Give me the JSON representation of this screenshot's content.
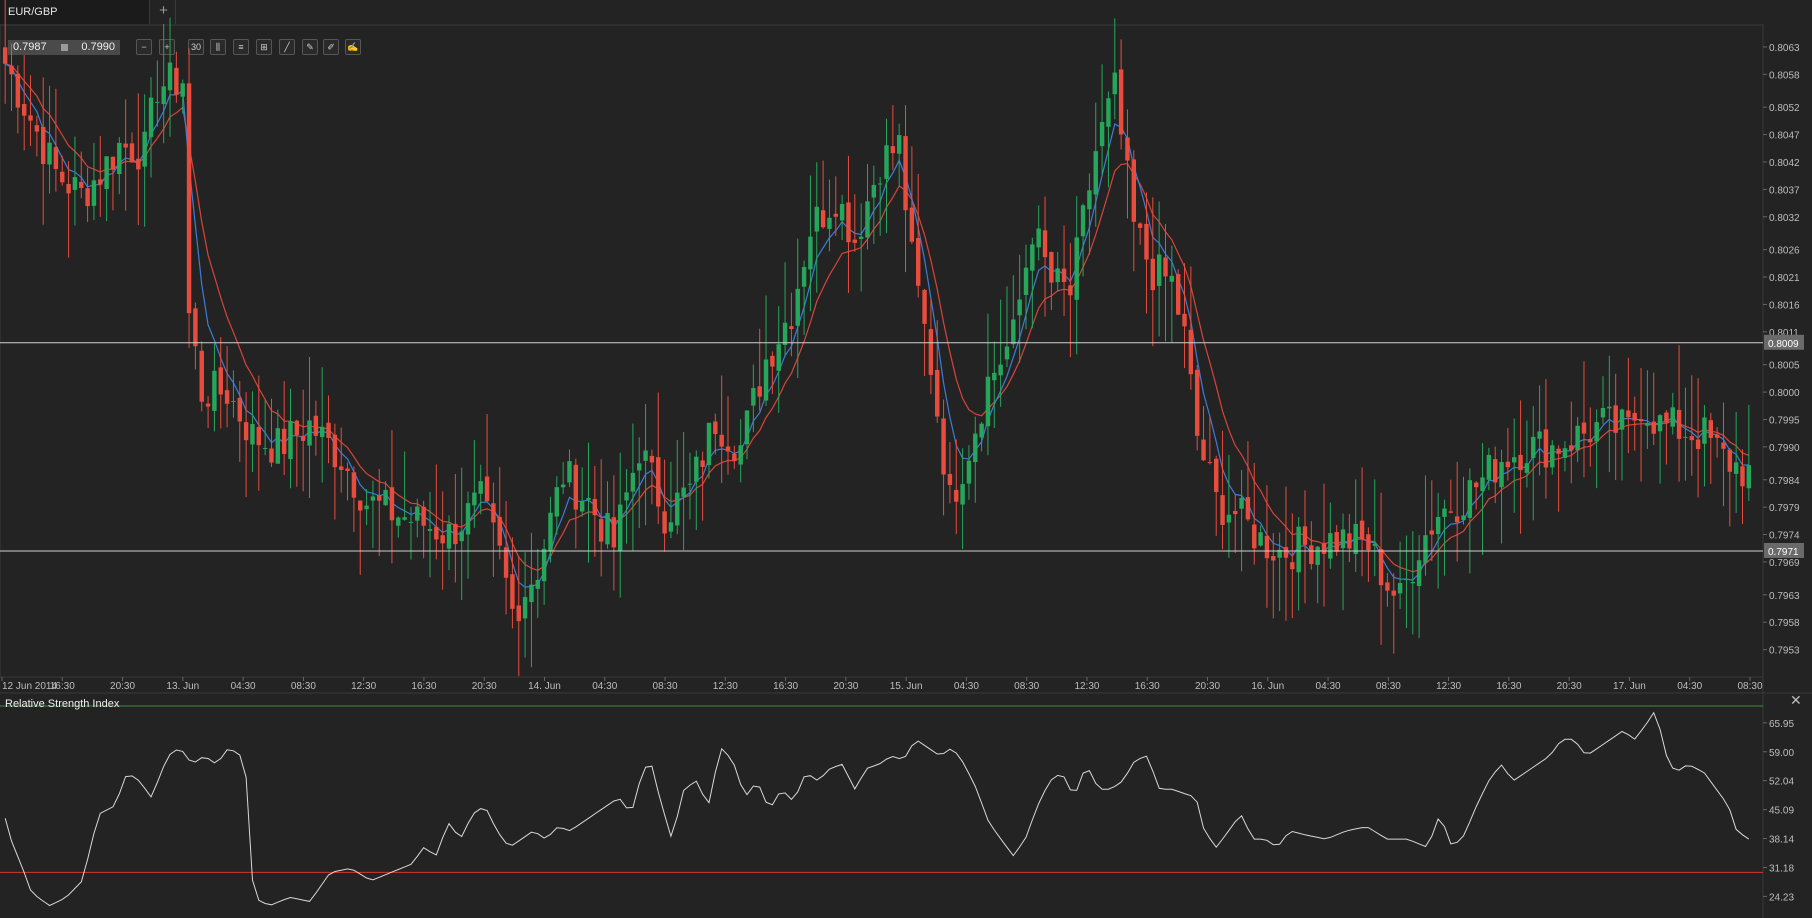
{
  "tabs": [
    {
      "label": "EUR/GBP"
    }
  ],
  "toolbar": {
    "bid": "0.7987",
    "ask": "0.7990",
    "tools": [
      {
        "name": "zoom-out-icon",
        "glyph": "−"
      },
      {
        "name": "zoom-in-icon",
        "glyph": "+"
      },
      {
        "name": "timeframe-button",
        "glyph": "30"
      },
      {
        "name": "candlestick-icon",
        "glyph": "⫼"
      },
      {
        "name": "indicators-icon",
        "glyph": "≡"
      },
      {
        "name": "crosshair-icon",
        "glyph": "⊞"
      },
      {
        "name": "trend-line-icon",
        "glyph": "╱"
      },
      {
        "name": "draw-pencil-icon",
        "glyph": "✎"
      },
      {
        "name": "edit-icon",
        "glyph": "✐"
      },
      {
        "name": "brush-icon",
        "glyph": "✍"
      }
    ]
  },
  "colors": {
    "background": "#232323",
    "bull": "#26a65b",
    "bear": "#e84c3d",
    "ma_fast": "#3b7dd8",
    "ma_slow": "#d6453b",
    "rsi_line": "#d8d8d8",
    "rsi_upper": "#3f8f3f",
    "rsi_lower": "#d03a2f"
  },
  "indicator": {
    "title": "Relative Strength Index"
  },
  "chart_data": [
    {
      "type": "candlestick",
      "symbol": "EUR/GBP",
      "ylim": [
        0.7948,
        0.8067
      ],
      "y_ticks": [
        "0.8063",
        "0.8058",
        "0.8052",
        "0.8047",
        "0.8042",
        "0.8037",
        "0.8032",
        "0.8026",
        "0.8021",
        "0.8016",
        "0.8011",
        "0.8005",
        "0.8000",
        "0.7995",
        "0.7990",
        "0.7984",
        "0.7979",
        "0.7974",
        "0.7969",
        "0.7963",
        "0.7958",
        "0.7953"
      ],
      "x_ticks": [
        "12 Jun 2014",
        "16:30",
        "20:30",
        "13. Jun",
        "04:30",
        "08:30",
        "12:30",
        "16:30",
        "20:30",
        "14. Jun",
        "04:30",
        "08:30",
        "12:30",
        "16:30",
        "20:30",
        "15. Jun",
        "04:30",
        "08:30",
        "12:30",
        "16:30",
        "20:30",
        "16. Jun",
        "04:30",
        "08:30",
        "12:30",
        "16:30",
        "20:30",
        "17. Jun",
        "04:30",
        "08:30"
      ],
      "horizontal_lines": [
        {
          "value": 0.8009,
          "label": "0.8009"
        },
        {
          "value": 0.7971,
          "label": "0.7971"
        }
      ],
      "close_path": [
        [
          0,
          0.806
        ],
        [
          8,
          0.805
        ],
        [
          16,
          0.804
        ],
        [
          24,
          0.8036
        ],
        [
          30,
          0.804
        ],
        [
          36,
          0.8045
        ],
        [
          44,
          0.8044
        ],
        [
          48,
          0.8056
        ],
        [
          56,
          0.8057
        ],
        [
          58,
          0.8014
        ],
        [
          62,
          0.8
        ],
        [
          70,
          0.8
        ],
        [
          78,
          0.7992
        ],
        [
          86,
          0.799
        ],
        [
          96,
          0.7994
        ],
        [
          106,
          0.7988
        ],
        [
          114,
          0.798
        ],
        [
          122,
          0.7978
        ],
        [
          132,
          0.7976
        ],
        [
          140,
          0.7974
        ],
        [
          150,
          0.798
        ],
        [
          156,
          0.797
        ],
        [
          160,
          0.796
        ],
        [
          168,
          0.7968
        ],
        [
          176,
          0.7985
        ],
        [
          184,
          0.798
        ],
        [
          192,
          0.7972
        ],
        [
          200,
          0.799
        ],
        [
          208,
          0.7978
        ],
        [
          216,
          0.7982
        ],
        [
          224,
          0.7995
        ],
        [
          232,
          0.799
        ],
        [
          240,
          0.8006
        ],
        [
          248,
          0.8015
        ],
        [
          254,
          0.803
        ],
        [
          262,
          0.8036
        ],
        [
          268,
          0.8028
        ],
        [
          276,
          0.8042
        ],
        [
          282,
          0.8045
        ],
        [
          286,
          0.8024
        ],
        [
          292,
          0.8005
        ],
        [
          298,
          0.798
        ],
        [
          304,
          0.799
        ],
        [
          310,
          0.8002
        ],
        [
          318,
          0.801
        ],
        [
          324,
          0.803
        ],
        [
          330,
          0.802
        ],
        [
          336,
          0.8018
        ],
        [
          344,
          0.8044
        ],
        [
          350,
          0.8055
        ],
        [
          356,
          0.803
        ],
        [
          362,
          0.8022
        ],
        [
          368,
          0.802
        ],
        [
          372,
          0.801
        ],
        [
          376,
          0.7992
        ],
        [
          382,
          0.798
        ],
        [
          388,
          0.7978
        ],
        [
          396,
          0.7973
        ],
        [
          402,
          0.7971
        ],
        [
          410,
          0.7972
        ],
        [
          416,
          0.7973
        ],
        [
          424,
          0.7973
        ],
        [
          430,
          0.7972
        ],
        [
          436,
          0.7965
        ],
        [
          440,
          0.7962
        ],
        [
          446,
          0.7972
        ],
        [
          452,
          0.7978
        ],
        [
          458,
          0.798
        ],
        [
          466,
          0.7984
        ],
        [
          472,
          0.7988
        ],
        [
          480,
          0.799
        ],
        [
          488,
          0.799
        ],
        [
          496,
          0.7992
        ],
        [
          504,
          0.7994
        ],
        [
          512,
          0.7993
        ],
        [
          516,
          0.7998
        ],
        [
          522,
          0.7994
        ],
        [
          530,
          0.7993
        ],
        [
          536,
          0.7992
        ],
        [
          542,
          0.7988
        ],
        [
          550,
          0.7985
        ]
      ]
    },
    {
      "type": "line",
      "name": "Relative Strength Index",
      "ylim": [
        20,
        70
      ],
      "y_ticks": [
        "65.95",
        "59.00",
        "52.04",
        "45.09",
        "38.14",
        "31.18",
        "24.23"
      ],
      "levels": [
        70,
        30
      ],
      "values_path": [
        [
          0,
          43
        ],
        [
          4,
          36
        ],
        [
          8,
          32
        ],
        [
          12,
          26
        ],
        [
          16,
          24
        ],
        [
          22,
          22
        ],
        [
          30,
          24
        ],
        [
          38,
          28
        ],
        [
          46,
          44
        ],
        [
          54,
          46
        ],
        [
          60,
          54
        ],
        [
          66,
          52
        ],
        [
          72,
          48
        ],
        [
          80,
          58
        ],
        [
          86,
          60
        ],
        [
          92,
          56
        ],
        [
          98,
          58
        ],
        [
          104,
          56
        ],
        [
          110,
          60
        ],
        [
          116,
          58
        ],
        [
          120,
          50
        ],
        [
          122,
          24
        ],
        [
          130,
          22
        ],
        [
          140,
          24
        ],
        [
          150,
          23
        ],
        [
          160,
          30
        ],
        [
          170,
          31
        ],
        [
          180,
          28
        ],
        [
          190,
          30
        ],
        [
          200,
          32
        ],
        [
          206,
          36
        ],
        [
          212,
          34
        ],
        [
          218,
          42
        ],
        [
          224,
          38
        ],
        [
          230,
          44
        ],
        [
          236,
          46
        ],
        [
          242,
          40
        ],
        [
          248,
          36
        ],
        [
          254,
          38
        ],
        [
          260,
          40
        ],
        [
          266,
          38
        ],
        [
          272,
          41
        ],
        [
          278,
          40
        ],
        [
          284,
          42
        ],
        [
          290,
          44
        ],
        [
          296,
          46
        ],
        [
          302,
          48
        ],
        [
          308,
          44
        ],
        [
          314,
          55
        ],
        [
          318,
          56
        ],
        [
          322,
          48
        ],
        [
          328,
          38
        ],
        [
          334,
          50
        ],
        [
          340,
          52
        ],
        [
          346,
          46
        ],
        [
          352,
          60
        ],
        [
          358,
          57
        ],
        [
          364,
          48
        ],
        [
          370,
          52
        ],
        [
          376,
          45
        ],
        [
          382,
          50
        ],
        [
          388,
          47
        ],
        [
          394,
          54
        ],
        [
          400,
          52
        ],
        [
          406,
          55
        ],
        [
          412,
          56
        ],
        [
          418,
          50
        ],
        [
          424,
          55
        ],
        [
          430,
          56
        ],
        [
          436,
          58
        ],
        [
          442,
          57
        ],
        [
          448,
          62
        ],
        [
          454,
          60
        ],
        [
          460,
          58
        ],
        [
          466,
          60
        ],
        [
          472,
          56
        ],
        [
          478,
          50
        ],
        [
          484,
          42
        ],
        [
          490,
          38
        ],
        [
          496,
          34
        ],
        [
          502,
          38
        ],
        [
          508,
          46
        ],
        [
          514,
          52
        ],
        [
          520,
          54
        ],
        [
          526,
          48
        ],
        [
          532,
          56
        ],
        [
          538,
          50
        ],
        [
          544,
          50
        ],
        [
          550,
          52
        ],
        [
          556,
          57
        ],
        [
          562,
          58
        ],
        [
          568,
          50
        ],
        [
          574,
          50
        ],
        [
          580,
          49
        ],
        [
          586,
          48
        ],
        [
          590,
          40
        ],
        [
          596,
          36
        ],
        [
          602,
          40
        ],
        [
          608,
          44
        ],
        [
          614,
          38
        ],
        [
          620,
          38
        ],
        [
          626,
          36
        ],
        [
          632,
          40
        ],
        [
          640,
          39
        ],
        [
          650,
          38
        ],
        [
          660,
          40
        ],
        [
          670,
          41
        ],
        [
          680,
          38
        ],
        [
          690,
          38
        ],
        [
          700,
          36
        ],
        [
          706,
          44
        ],
        [
          712,
          36
        ],
        [
          718,
          39
        ],
        [
          724,
          46
        ],
        [
          730,
          52
        ],
        [
          736,
          56
        ],
        [
          742,
          52
        ],
        [
          748,
          54
        ],
        [
          754,
          56
        ],
        [
          760,
          58
        ],
        [
          766,
          62
        ],
        [
          772,
          62
        ],
        [
          778,
          58
        ],
        [
          784,
          60
        ],
        [
          790,
          62
        ],
        [
          796,
          64
        ],
        [
          802,
          62
        ],
        [
          808,
          66
        ],
        [
          812,
          69
        ],
        [
          818,
          57
        ],
        [
          822,
          54
        ],
        [
          828,
          56
        ],
        [
          836,
          54
        ],
        [
          842,
          50
        ],
        [
          848,
          46
        ],
        [
          852,
          40
        ],
        [
          858,
          38
        ]
      ]
    }
  ]
}
